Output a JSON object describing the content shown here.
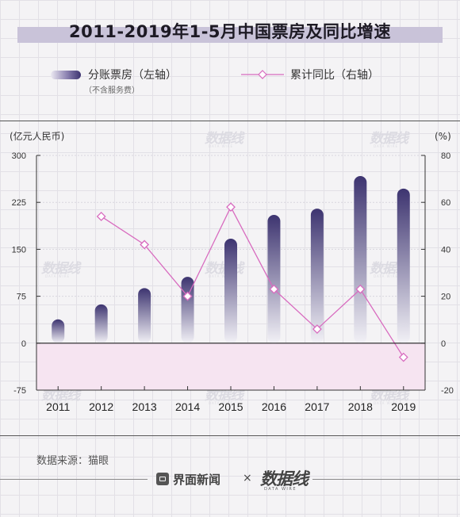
{
  "title": "2011-2019年1-5月中国票房及同比增速",
  "legend": {
    "bar_label": "分账票房（左轴）",
    "bar_sub": "（不含服务费）",
    "line_label": "累计同比（右轴）"
  },
  "source": "数据来源：猫眼",
  "footer": {
    "brand1": "界面新闻",
    "separator": "×",
    "brand2": "数据线",
    "brand2_sub": "DATA WIRE"
  },
  "watermark_text": "数据线",
  "watermark_sub": "DATA WIRE",
  "colors": {
    "bar_top": "#3d3470",
    "bar_bottom": "#f2f1f6",
    "line": "#d86bbf",
    "negative_band": "#f6e4f1"
  },
  "chart_data": {
    "type": "bar",
    "title": "2011-2019年1-5月中国票房及同比增速",
    "categories": [
      "2011",
      "2012",
      "2013",
      "2014",
      "2015",
      "2016",
      "2017",
      "2018",
      "2019"
    ],
    "y_left": {
      "label": "(亿元人民币)",
      "range": [
        -75,
        300
      ],
      "ticks": [
        -75,
        0,
        75,
        150,
        225,
        300
      ],
      "tick_labels": [
        "-75",
        "0",
        "75",
        "150",
        "225",
        "300"
      ]
    },
    "y_right": {
      "label": "(%)",
      "range": [
        -20,
        80
      ],
      "ticks": [
        -20,
        0,
        20,
        40,
        60,
        80
      ],
      "tick_labels": [
        "-20",
        "0",
        "20",
        "40",
        "60",
        "80"
      ]
    },
    "grid": true,
    "series": [
      {
        "name": "分账票房（左轴）",
        "type": "bar",
        "axis": "left",
        "values": [
          38,
          62,
          88,
          106,
          167,
          205,
          215,
          267,
          247
        ]
      },
      {
        "name": "累计同比（右轴）",
        "type": "line",
        "axis": "right",
        "values": [
          null,
          54,
          42,
          20,
          58,
          23,
          6,
          23,
          -6
        ]
      }
    ]
  }
}
